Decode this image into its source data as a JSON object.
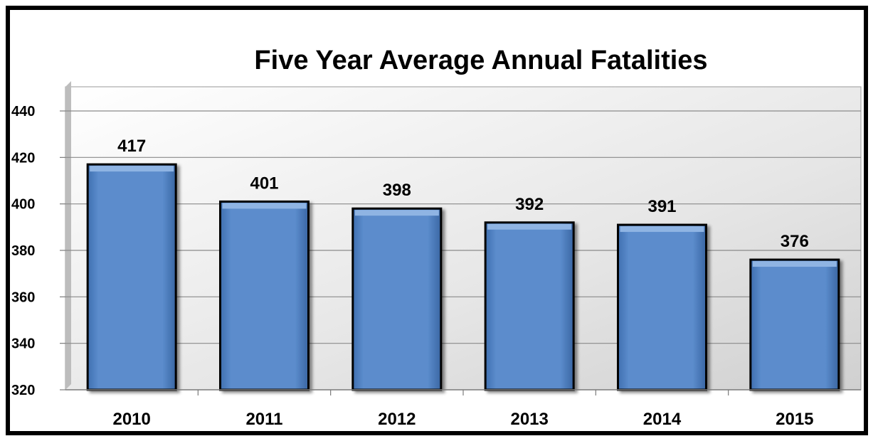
{
  "chart_data": {
    "type": "bar",
    "title": "Five Year Average Annual Fatalities",
    "categories": [
      "2010",
      "2011",
      "2012",
      "2013",
      "2014",
      "2015"
    ],
    "values": [
      417,
      401,
      398,
      392,
      391,
      376
    ],
    "data_labels": [
      "417",
      "401",
      "398",
      "392",
      "391",
      "376"
    ],
    "ylim": [
      320,
      450
    ],
    "yticks": [
      320,
      340,
      360,
      380,
      400,
      420,
      440
    ],
    "xlabel": "",
    "ylabel": "",
    "grid": true,
    "legend": "none",
    "colors": {
      "bar_fill": "#5b8ccc",
      "bar_highlight": "#8fb4e3",
      "bar_outline": "#000000",
      "plot_background": "#e4e4e4",
      "gridline": "#8a8a8a"
    }
  }
}
